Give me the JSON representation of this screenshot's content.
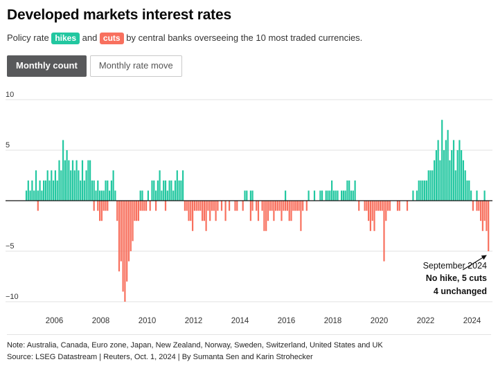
{
  "header": {
    "title": "Developed markets interest rates",
    "subtitle": {
      "before": "Policy rate ",
      "hikes_label": "hikes",
      "mid": " and ",
      "cuts_label": "cuts",
      "after": " by central banks overseeing the 10 most traded currencies."
    }
  },
  "toggles": {
    "monthly_count": "Monthly count",
    "monthly_rate_move": "Monthly rate move"
  },
  "colors": {
    "hike": "#22C7A0",
    "cut": "#F8705E",
    "active_button": "#58595B",
    "gridline": "#e0e0e0",
    "zero_line": "#111111"
  },
  "chart_data": {
    "type": "bar",
    "title": "Developed markets interest rates",
    "ylabel": "",
    "xlabel": "",
    "ylim": [
      -10,
      10
    ],
    "grid": true,
    "y_ticks": [
      {
        "v": 10,
        "label": "10"
      },
      {
        "v": 5,
        "label": "5"
      },
      {
        "v": 0,
        "label": ""
      },
      {
        "v": -5,
        "label": "−5"
      },
      {
        "v": -10,
        "label": "−10"
      }
    ],
    "x_ticks": [
      2006,
      2008,
      2010,
      2012,
      2014,
      2016,
      2018,
      2020,
      2022,
      2024
    ],
    "series_legend": [
      {
        "name": "hikes",
        "color": "#22C7A0"
      },
      {
        "name": "cuts",
        "color": "#F8705E"
      }
    ],
    "months": [
      [
        "2004-10",
        1,
        0
      ],
      [
        "2004-11",
        2,
        0
      ],
      [
        "2004-12",
        1,
        0
      ],
      [
        "2005-01",
        2,
        0
      ],
      [
        "2005-02",
        1,
        0
      ],
      [
        "2005-03",
        3,
        0
      ],
      [
        "2005-04",
        1,
        1
      ],
      [
        "2005-05",
        2,
        0
      ],
      [
        "2005-06",
        1,
        0
      ],
      [
        "2005-07",
        2,
        0
      ],
      [
        "2005-08",
        2,
        0
      ],
      [
        "2005-09",
        3,
        0
      ],
      [
        "2005-10",
        2,
        0
      ],
      [
        "2005-11",
        3,
        0
      ],
      [
        "2005-12",
        2,
        0
      ],
      [
        "2006-01",
        3,
        0
      ],
      [
        "2006-02",
        2,
        0
      ],
      [
        "2006-03",
        4,
        0
      ],
      [
        "2006-04",
        3,
        0
      ],
      [
        "2006-05",
        6,
        0
      ],
      [
        "2006-06",
        4,
        0
      ],
      [
        "2006-07",
        5,
        0
      ],
      [
        "2006-08",
        4,
        0
      ],
      [
        "2006-09",
        3,
        0
      ],
      [
        "2006-10",
        4,
        0
      ],
      [
        "2006-11",
        3,
        0
      ],
      [
        "2006-12",
        4,
        0
      ],
      [
        "2007-01",
        3,
        0
      ],
      [
        "2007-02",
        2,
        0
      ],
      [
        "2007-03",
        4,
        0
      ],
      [
        "2007-04",
        2,
        0
      ],
      [
        "2007-05",
        3,
        0
      ],
      [
        "2007-06",
        4,
        0
      ],
      [
        "2007-07",
        4,
        0
      ],
      [
        "2007-08",
        2,
        0
      ],
      [
        "2007-09",
        2,
        1
      ],
      [
        "2007-10",
        1,
        0
      ],
      [
        "2007-11",
        2,
        1
      ],
      [
        "2007-12",
        1,
        2
      ],
      [
        "2008-01",
        1,
        2
      ],
      [
        "2008-02",
        1,
        1
      ],
      [
        "2008-03",
        2,
        1
      ],
      [
        "2008-04",
        2,
        1
      ],
      [
        "2008-05",
        1,
        0
      ],
      [
        "2008-06",
        2,
        0
      ],
      [
        "2008-07",
        3,
        0
      ],
      [
        "2008-08",
        1,
        0
      ],
      [
        "2008-09",
        0,
        2
      ],
      [
        "2008-10",
        0,
        7
      ],
      [
        "2008-11",
        0,
        6
      ],
      [
        "2008-12",
        0,
        9
      ],
      [
        "2009-01",
        0,
        10
      ],
      [
        "2009-02",
        0,
        8
      ],
      [
        "2009-03",
        0,
        6
      ],
      [
        "2009-04",
        0,
        5
      ],
      [
        "2009-05",
        0,
        4
      ],
      [
        "2009-06",
        0,
        2
      ],
      [
        "2009-07",
        0,
        2
      ],
      [
        "2009-08",
        0,
        2
      ],
      [
        "2009-09",
        1,
        1
      ],
      [
        "2009-10",
        1,
        1
      ],
      [
        "2009-11",
        0,
        1
      ],
      [
        "2009-12",
        0,
        1
      ],
      [
        "2010-01",
        1,
        0
      ],
      [
        "2010-02",
        0,
        1
      ],
      [
        "2010-03",
        2,
        0
      ],
      [
        "2010-04",
        2,
        0
      ],
      [
        "2010-05",
        1,
        1
      ],
      [
        "2010-06",
        2,
        0
      ],
      [
        "2010-07",
        3,
        0
      ],
      [
        "2010-08",
        1,
        0
      ],
      [
        "2010-09",
        2,
        0
      ],
      [
        "2010-10",
        2,
        1
      ],
      [
        "2010-11",
        1,
        0
      ],
      [
        "2010-12",
        2,
        0
      ],
      [
        "2011-01",
        2,
        0
      ],
      [
        "2011-02",
        1,
        0
      ],
      [
        "2011-03",
        2,
        0
      ],
      [
        "2011-04",
        3,
        0
      ],
      [
        "2011-05",
        2,
        0
      ],
      [
        "2011-06",
        2,
        0
      ],
      [
        "2011-07",
        3,
        0
      ],
      [
        "2011-08",
        0,
        1
      ],
      [
        "2011-09",
        0,
        1
      ],
      [
        "2011-10",
        0,
        2
      ],
      [
        "2011-11",
        0,
        2
      ],
      [
        "2011-12",
        0,
        3
      ],
      [
        "2012-01",
        0,
        1
      ],
      [
        "2012-02",
        0,
        1
      ],
      [
        "2012-03",
        0,
        1
      ],
      [
        "2012-04",
        0,
        1
      ],
      [
        "2012-05",
        0,
        2
      ],
      [
        "2012-06",
        0,
        2
      ],
      [
        "2012-07",
        0,
        3
      ],
      [
        "2012-08",
        0,
        1
      ],
      [
        "2012-09",
        0,
        2
      ],
      [
        "2012-10",
        0,
        1
      ],
      [
        "2012-11",
        0,
        1
      ],
      [
        "2012-12",
        0,
        2
      ],
      [
        "2013-01",
        0,
        1
      ],
      [
        "2013-03",
        0,
        1
      ],
      [
        "2013-05",
        0,
        2
      ],
      [
        "2013-07",
        0,
        1
      ],
      [
        "2013-10",
        0,
        1
      ],
      [
        "2013-11",
        0,
        1
      ],
      [
        "2014-02",
        0,
        1
      ],
      [
        "2014-03",
        1,
        0
      ],
      [
        "2014-04",
        1,
        0
      ],
      [
        "2014-06",
        1,
        2
      ],
      [
        "2014-07",
        1,
        1
      ],
      [
        "2014-09",
        0,
        1
      ],
      [
        "2014-10",
        0,
        2
      ],
      [
        "2014-12",
        0,
        1
      ],
      [
        "2015-01",
        0,
        3
      ],
      [
        "2015-02",
        0,
        3
      ],
      [
        "2015-03",
        0,
        2
      ],
      [
        "2015-04",
        0,
        1
      ],
      [
        "2015-05",
        0,
        1
      ],
      [
        "2015-06",
        0,
        2
      ],
      [
        "2015-07",
        0,
        1
      ],
      [
        "2015-08",
        0,
        1
      ],
      [
        "2015-09",
        0,
        1
      ],
      [
        "2015-10",
        0,
        2
      ],
      [
        "2015-11",
        0,
        1
      ],
      [
        "2015-12",
        1,
        1
      ],
      [
        "2016-01",
        0,
        1
      ],
      [
        "2016-02",
        0,
        2
      ],
      [
        "2016-03",
        0,
        2
      ],
      [
        "2016-04",
        0,
        1
      ],
      [
        "2016-05",
        0,
        1
      ],
      [
        "2016-06",
        0,
        1
      ],
      [
        "2016-07",
        0,
        1
      ],
      [
        "2016-08",
        0,
        3
      ],
      [
        "2016-09",
        0,
        1
      ],
      [
        "2016-11",
        0,
        1
      ],
      [
        "2016-12",
        1,
        0
      ],
      [
        "2017-03",
        1,
        0
      ],
      [
        "2017-06",
        1,
        0
      ],
      [
        "2017-07",
        1,
        0
      ],
      [
        "2017-09",
        1,
        0
      ],
      [
        "2017-10",
        1,
        0
      ],
      [
        "2017-11",
        1,
        0
      ],
      [
        "2017-12",
        2,
        0
      ],
      [
        "2018-01",
        1,
        0
      ],
      [
        "2018-02",
        1,
        0
      ],
      [
        "2018-03",
        1,
        0
      ],
      [
        "2018-05",
        1,
        0
      ],
      [
        "2018-06",
        1,
        0
      ],
      [
        "2018-07",
        1,
        0
      ],
      [
        "2018-08",
        2,
        0
      ],
      [
        "2018-09",
        2,
        0
      ],
      [
        "2018-10",
        1,
        0
      ],
      [
        "2018-11",
        1,
        0
      ],
      [
        "2018-12",
        2,
        0
      ],
      [
        "2019-02",
        0,
        1
      ],
      [
        "2019-05",
        0,
        1
      ],
      [
        "2019-06",
        0,
        1
      ],
      [
        "2019-07",
        0,
        2
      ],
      [
        "2019-08",
        0,
        3
      ],
      [
        "2019-09",
        0,
        2
      ],
      [
        "2019-10",
        0,
        3
      ],
      [
        "2019-11",
        0,
        1
      ],
      [
        "2019-12",
        0,
        1
      ],
      [
        "2020-01",
        0,
        1
      ],
      [
        "2020-02",
        0,
        1
      ],
      [
        "2020-03",
        0,
        6
      ],
      [
        "2020-04",
        0,
        2
      ],
      [
        "2020-05",
        0,
        1
      ],
      [
        "2020-06",
        0,
        1
      ],
      [
        "2020-10",
        0,
        1
      ],
      [
        "2020-11",
        0,
        1
      ],
      [
        "2021-03",
        0,
        1
      ],
      [
        "2021-06",
        1,
        0
      ],
      [
        "2021-08",
        1,
        0
      ],
      [
        "2021-09",
        2,
        0
      ],
      [
        "2021-10",
        2,
        0
      ],
      [
        "2021-11",
        2,
        0
      ],
      [
        "2021-12",
        2,
        0
      ],
      [
        "2022-01",
        2,
        0
      ],
      [
        "2022-02",
        3,
        0
      ],
      [
        "2022-03",
        3,
        0
      ],
      [
        "2022-04",
        3,
        0
      ],
      [
        "2022-05",
        4,
        0
      ],
      [
        "2022-06",
        5,
        0
      ],
      [
        "2022-07",
        6,
        0
      ],
      [
        "2022-08",
        4,
        0
      ],
      [
        "2022-09",
        8,
        0
      ],
      [
        "2022-10",
        5,
        0
      ],
      [
        "2022-11",
        6,
        0
      ],
      [
        "2022-12",
        7,
        0
      ],
      [
        "2023-01",
        4,
        0
      ],
      [
        "2023-02",
        5,
        0
      ],
      [
        "2023-03",
        6,
        0
      ],
      [
        "2023-04",
        3,
        0
      ],
      [
        "2023-05",
        5,
        0
      ],
      [
        "2023-06",
        6,
        0
      ],
      [
        "2023-07",
        5,
        0
      ],
      [
        "2023-08",
        4,
        0
      ],
      [
        "2023-09",
        3,
        0
      ],
      [
        "2023-10",
        2,
        0
      ],
      [
        "2023-11",
        2,
        0
      ],
      [
        "2023-12",
        1,
        0
      ],
      [
        "2024-01",
        0,
        1
      ],
      [
        "2024-03",
        1,
        1
      ],
      [
        "2024-04",
        0,
        1
      ],
      [
        "2024-05",
        0,
        2
      ],
      [
        "2024-06",
        0,
        3
      ],
      [
        "2024-07",
        1,
        2
      ],
      [
        "2024-08",
        0,
        3
      ],
      [
        "2024-09",
        0,
        5
      ]
    ],
    "annotation": {
      "line1": "September 2024",
      "line2": "No hike, 5 cuts",
      "line3": "4 unchanged",
      "target_month": "2024-09"
    }
  },
  "footer": {
    "note": "Note: Australia, Canada, Euro zone, Japan, New Zealand, Norway, Sweden, Switzerland, United States and UK",
    "source": "Source: LSEG Datastream | Reuters, Oct. 1, 2024 | By Sumanta Sen and Karin Strohecker"
  }
}
